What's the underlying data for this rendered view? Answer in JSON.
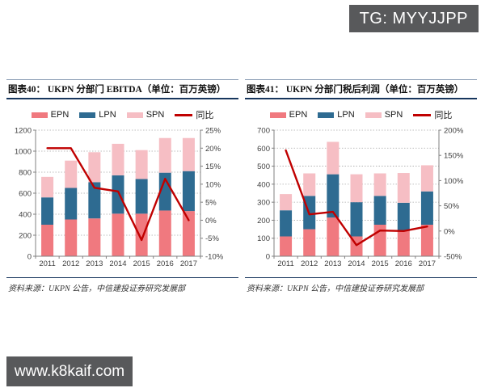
{
  "badge": {
    "text": "TG: MYYJJPP"
  },
  "watermark": {
    "text": "www.k8kaif.com"
  },
  "colors": {
    "epn": "#F0797F",
    "lpn": "#2E6B91",
    "spn": "#F6BEC4",
    "line": "#C00000",
    "title_rule": "#17365D",
    "badge_bg": "#58595B"
  },
  "charts": [
    {
      "title": "图表40：  UKPN 分部门 EBITDA（单位：百万英镑）",
      "legend": [
        "EPN",
        "LPN",
        "SPN",
        "同比"
      ],
      "source": "资料来源：UKPN 公告，中信建投证券研究发展部"
    },
    {
      "title": "图表41：  UKPN 分部门税后利润（单位：百万英镑）",
      "legend": [
        "EPN",
        "LPN",
        "SPN",
        "同比"
      ],
      "source": "资料来源：UKPN 公告，中信建投证券研究发展部"
    }
  ],
  "chart_data": [
    {
      "type": "bar",
      "stacked": true,
      "title": "图表40：UKPN 分部门 EBITDA（单位：百万英镑）",
      "categories": [
        "2011",
        "2012",
        "2013",
        "2014",
        "2015",
        "2016",
        "2017"
      ],
      "series": [
        {
          "name": "EPN",
          "values": [
            300,
            350,
            360,
            405,
            405,
            435,
            430
          ]
        },
        {
          "name": "LPN",
          "values": [
            260,
            300,
            345,
            365,
            330,
            360,
            380
          ]
        },
        {
          "name": "SPN",
          "values": [
            195,
            260,
            285,
            300,
            275,
            330,
            315
          ]
        }
      ],
      "line_series": {
        "name": "同比",
        "axis": "right",
        "values_pct": [
          20,
          20,
          9,
          8,
          -5.5,
          11.5,
          0
        ]
      },
      "left_axis": {
        "min": 0,
        "max": 1200,
        "step": 200
      },
      "right_axis": {
        "min": -10,
        "max": 25,
        "step": 5,
        "format": "percent"
      },
      "legend_position": "top",
      "grid": "dotted-horizontal"
    },
    {
      "type": "bar",
      "stacked": true,
      "title": "图表41：UKPN 分部门税后利润（单位：百万英镑）",
      "categories": [
        "2011",
        "2012",
        "2013",
        "2014",
        "2015",
        "2016",
        "2017"
      ],
      "series": [
        {
          "name": "EPN",
          "values": [
            110,
            150,
            215,
            110,
            175,
            140,
            175
          ]
        },
        {
          "name": "LPN",
          "values": [
            145,
            185,
            240,
            190,
            160,
            157,
            185
          ]
        },
        {
          "name": "SPN",
          "values": [
            90,
            125,
            180,
            155,
            125,
            165,
            145
          ]
        }
      ],
      "line_series": {
        "name": "同比",
        "axis": "right",
        "values_pct": [
          160,
          33,
          38,
          -28,
          1,
          0,
          9
        ]
      },
      "left_axis": {
        "min": 0,
        "max": 700,
        "step": 100
      },
      "right_axis": {
        "min": -50,
        "max": 200,
        "step": 50,
        "format": "percent"
      },
      "legend_position": "top",
      "grid": "dotted-horizontal"
    }
  ]
}
